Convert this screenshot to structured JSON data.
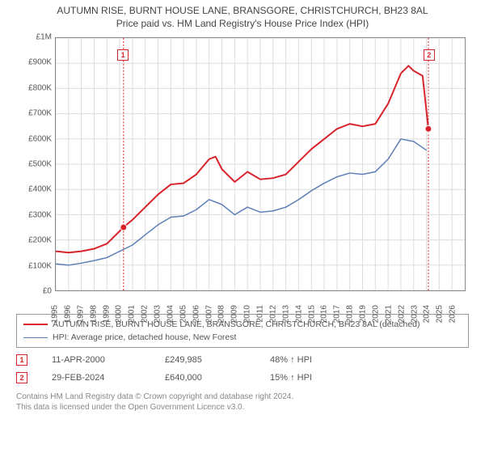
{
  "title_line1": "AUTUMN RISE, BURNT HOUSE LANE, BRANSGORE, CHRISTCHURCH, BH23 8AL",
  "title_line2": "Price paid vs. HM Land Registry's House Price Index (HPI)",
  "chart": {
    "type": "line",
    "background_color": "#ffffff",
    "grid_color": "#dddddd",
    "axis_color": "#888888",
    "tick_label_color": "#555555",
    "tick_fontsize": 10,
    "x_start": 1995,
    "x_end": 2027,
    "x_ticks": [
      1995,
      1996,
      1997,
      1998,
      1999,
      2000,
      2001,
      2002,
      2003,
      2004,
      2005,
      2006,
      2007,
      2008,
      2009,
      2010,
      2011,
      2012,
      2013,
      2014,
      2015,
      2016,
      2017,
      2018,
      2019,
      2020,
      2021,
      2022,
      2023,
      2024,
      2025,
      2026
    ],
    "y_min": 0,
    "y_max": 1000000,
    "y_ticks": [
      0,
      100000,
      200000,
      300000,
      400000,
      500000,
      600000,
      700000,
      800000,
      900000,
      1000000
    ],
    "y_tick_labels": [
      "£0",
      "£100K",
      "£200K",
      "£300K",
      "£400K",
      "£500K",
      "£600K",
      "£700K",
      "£800K",
      "£900K",
      "£1M"
    ],
    "series": [
      {
        "name": "property",
        "color": "#d8232a",
        "width": 2,
        "points": [
          [
            1995,
            155000
          ],
          [
            1996,
            150000
          ],
          [
            1997,
            155000
          ],
          [
            1998,
            165000
          ],
          [
            1999,
            185000
          ],
          [
            2000.3,
            249985
          ],
          [
            2001,
            280000
          ],
          [
            2002,
            330000
          ],
          [
            2003,
            380000
          ],
          [
            2004,
            420000
          ],
          [
            2005,
            425000
          ],
          [
            2006,
            460000
          ],
          [
            2007,
            520000
          ],
          [
            2007.5,
            530000
          ],
          [
            2008,
            480000
          ],
          [
            2009,
            430000
          ],
          [
            2010,
            470000
          ],
          [
            2011,
            440000
          ],
          [
            2012,
            445000
          ],
          [
            2013,
            460000
          ],
          [
            2014,
            510000
          ],
          [
            2015,
            560000
          ],
          [
            2016,
            600000
          ],
          [
            2017,
            640000
          ],
          [
            2018,
            660000
          ],
          [
            2019,
            650000
          ],
          [
            2020,
            660000
          ],
          [
            2021,
            740000
          ],
          [
            2022,
            860000
          ],
          [
            2022.6,
            890000
          ],
          [
            2023,
            870000
          ],
          [
            2023.7,
            850000
          ],
          [
            2024.15,
            640000
          ]
        ]
      },
      {
        "name": "hpi",
        "color": "#5b7fb5",
        "width": 1.5,
        "points": [
          [
            1995,
            105000
          ],
          [
            1996,
            100000
          ],
          [
            1997,
            108000
          ],
          [
            1998,
            118000
          ],
          [
            1999,
            130000
          ],
          [
            2000,
            155000
          ],
          [
            2001,
            180000
          ],
          [
            2002,
            220000
          ],
          [
            2003,
            260000
          ],
          [
            2004,
            290000
          ],
          [
            2005,
            295000
          ],
          [
            2006,
            320000
          ],
          [
            2007,
            360000
          ],
          [
            2008,
            340000
          ],
          [
            2009,
            300000
          ],
          [
            2010,
            330000
          ],
          [
            2011,
            310000
          ],
          [
            2012,
            315000
          ],
          [
            2013,
            330000
          ],
          [
            2014,
            360000
          ],
          [
            2015,
            395000
          ],
          [
            2016,
            425000
          ],
          [
            2017,
            450000
          ],
          [
            2018,
            465000
          ],
          [
            2019,
            460000
          ],
          [
            2020,
            470000
          ],
          [
            2021,
            520000
          ],
          [
            2022,
            600000
          ],
          [
            2023,
            590000
          ],
          [
            2024,
            555000
          ]
        ]
      }
    ],
    "markers": [
      {
        "id": "1",
        "x": 2000.3,
        "y": 249985,
        "y_box": 930000,
        "color": "#d8232a"
      },
      {
        "id": "2",
        "x": 2024.15,
        "y": 640000,
        "y_box": 930000,
        "color": "#d8232a"
      }
    ]
  },
  "legend": [
    {
      "color": "#d8232a",
      "width": 2,
      "label": "AUTUMN RISE, BURNT HOUSE LANE, BRANSGORE, CHRISTCHURCH, BH23 8AL (detached)"
    },
    {
      "color": "#5b7fb5",
      "width": 1.5,
      "label": "HPI: Average price, detached house, New Forest"
    }
  ],
  "events": [
    {
      "id": "1",
      "color": "#d8232a",
      "date": "11-APR-2000",
      "price": "£249,985",
      "delta": "48% ↑ HPI"
    },
    {
      "id": "2",
      "color": "#d8232a",
      "date": "29-FEB-2024",
      "price": "£640,000",
      "delta": "15% ↑ HPI"
    }
  ],
  "footer_line1": "Contains HM Land Registry data © Crown copyright and database right 2024.",
  "footer_line2": "This data is licensed under the Open Government Licence v3.0."
}
